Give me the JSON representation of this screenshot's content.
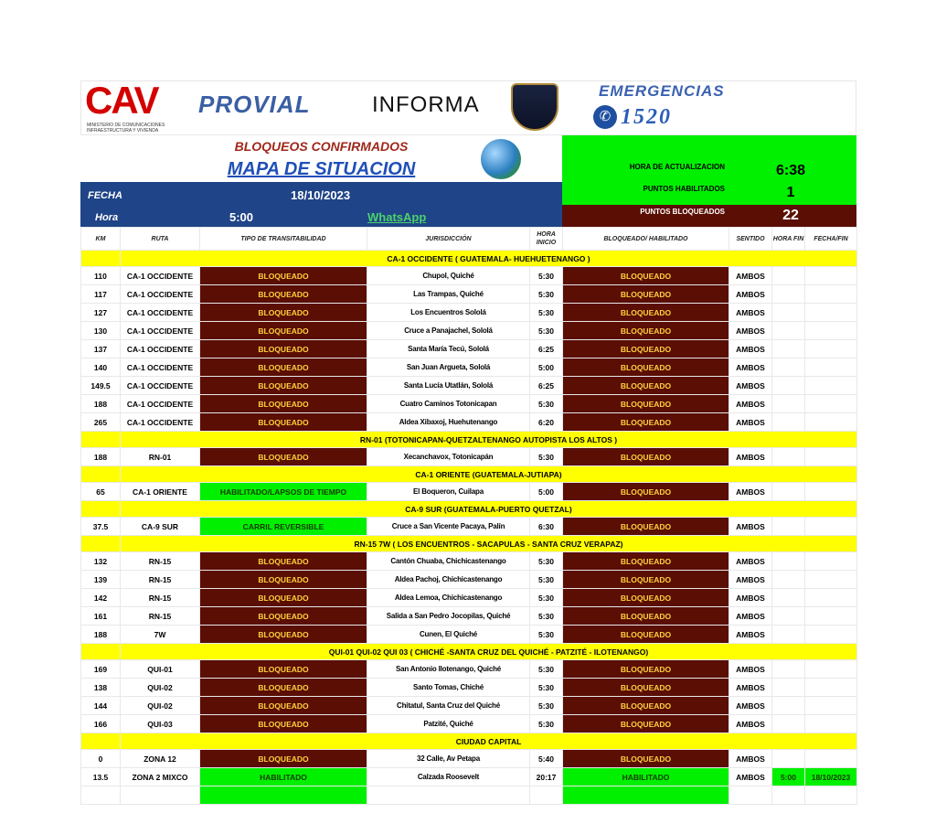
{
  "header": {
    "logo_cav": "CAV",
    "logo_cav_sub": "MINISTERIO DE COMUNICACIONES INFRAESTRUCTURA Y VIVIENDA",
    "provial": "PROVIAL",
    "informa": "INFORMA",
    "emergencias": "EMERGENCIAS",
    "phone": "1520"
  },
  "title": {
    "subtitle": "BLOQUEOS CONFIRMADOS",
    "main": "MAPA DE SITUACION"
  },
  "info": {
    "fecha_label": "FECHA",
    "fecha": "18/10/2023",
    "hora_label": "Hora",
    "hora": "5:00",
    "whatsapp": "WhatsApp",
    "actualizacion_label": "HORA DE ACTUALIZACION",
    "actualizacion": "6:38",
    "habilitados_label": "PUNTOS HABILITADOS",
    "habilitados": "1",
    "bloqueados_label": "PUNTOS BLOQUEADOS",
    "bloqueados": "22"
  },
  "colors": {
    "blocked": "#5a0e04",
    "enabled": "#00f000",
    "section": "#ffff00",
    "blue": "#1f4487"
  },
  "columns": [
    "KM",
    "RUTA",
    "TIPO DE TRANSITABILIDAD",
    "JURISDICCIÓN",
    "HORA INICIO",
    "BLOQUEADO/ HABILITADO",
    "SENTIDO",
    "HORA FIN",
    "FECHA/FIN"
  ],
  "sections": [
    {
      "title": "CA-1 OCCIDENTE  ( GUATEMALA- HUEHUETENANGO )",
      "rows": [
        [
          "110",
          "CA-1 OCCIDENTE",
          "BLOQUEADO",
          "Chupol, Quiché",
          "5:30",
          "BLOQUEADO",
          "AMBOS",
          "",
          ""
        ],
        [
          "117",
          "CA-1 OCCIDENTE",
          "BLOQUEADO",
          "Las Trampas, Quiché",
          "5:30",
          "BLOQUEADO",
          "AMBOS",
          "",
          ""
        ],
        [
          "127",
          "CA-1 OCCIDENTE",
          "BLOQUEADO",
          "Los Encuentros Sololá",
          "5:30",
          "BLOQUEADO",
          "AMBOS",
          "",
          ""
        ],
        [
          "130",
          "CA-1 OCCIDENTE",
          "BLOQUEADO",
          "Cruce a Panajachel, Sololá",
          "5:30",
          "BLOQUEADO",
          "AMBOS",
          "",
          ""
        ],
        [
          "137",
          "CA-1 OCCIDENTE",
          "BLOQUEADO",
          "Santa María Tecú, Sololá",
          "6:25",
          "BLOQUEADO",
          "AMBOS",
          "",
          ""
        ],
        [
          "140",
          "CA-1 OCCIDENTE",
          "BLOQUEADO",
          "San Juan Argueta, Sololá",
          "5:00",
          "BLOQUEADO",
          "AMBOS",
          "",
          ""
        ],
        [
          "149.5",
          "CA-1 OCCIDENTE",
          "BLOQUEADO",
          "Santa Lucía Utatlán, Sololá",
          "6:25",
          "BLOQUEADO",
          "AMBOS",
          "",
          ""
        ],
        [
          "188",
          "CA-1 OCCIDENTE",
          "BLOQUEADO",
          "Cuatro Caminos Totonicapan",
          "5:30",
          "BLOQUEADO",
          "AMBOS",
          "",
          ""
        ],
        [
          "265",
          "CA-1 OCCIDENTE",
          "BLOQUEADO",
          "Aldea Xibaxoj, Huehutenango",
          "6:20",
          "BLOQUEADO",
          "AMBOS",
          "",
          ""
        ]
      ]
    },
    {
      "title": "RN-01 (TOTONICAPAN-QUETZALTENANGO AUTOPISTA LOS ALTOS )",
      "rows": [
        [
          "188",
          "RN-01",
          "BLOQUEADO",
          "Xecanchavox, Totonicapán",
          "5:30",
          "BLOQUEADO",
          "AMBOS",
          "",
          ""
        ]
      ]
    },
    {
      "title": "CA-1 ORIENTE (GUATEMALA-JUTIAPA)",
      "rows": [
        [
          "65",
          "CA-1 ORIENTE",
          "HABILITADO/LAPSOS DE TIEMPO",
          "El Boqueron, Cuilapa",
          "5:00",
          "BLOQUEADO",
          "AMBOS",
          "",
          ""
        ]
      ]
    },
    {
      "title": "CA-9 SUR (GUATEMALA-PUERTO QUETZAL)",
      "rows": [
        [
          "37.5",
          "CA-9 SUR",
          "CARRIL REVERSIBLE",
          "Cruce a San Vicente Pacaya, Palín",
          "6:30",
          "BLOQUEADO",
          "AMBOS",
          "",
          ""
        ]
      ]
    },
    {
      "title": "RN-15 7W  ( LOS ENCUENTROS - SACAPULAS - SANTA CRUZ VERAPAZ)",
      "rows": [
        [
          "132",
          "RN-15",
          "BLOQUEADO",
          "Cantón Chuaba, Chichicastenango",
          "5:30",
          "BLOQUEADO",
          "AMBOS",
          "",
          ""
        ],
        [
          "139",
          "RN-15",
          "BLOQUEADO",
          "Aldea Pachoj, Chichicastenango",
          "5:30",
          "BLOQUEADO",
          "AMBOS",
          "",
          ""
        ],
        [
          "142",
          "RN-15",
          "BLOQUEADO",
          "Aldea Lemoa, Chichicastenango",
          "5:30",
          "BLOQUEADO",
          "AMBOS",
          "",
          ""
        ],
        [
          "161",
          "RN-15",
          "BLOQUEADO",
          "Salida a San Pedro Jocopilas, Quiché",
          "5:30",
          "BLOQUEADO",
          "AMBOS",
          "",
          ""
        ],
        [
          "188",
          "7W",
          "BLOQUEADO",
          "Cunen, El Quiché",
          "5:30",
          "BLOQUEADO",
          "AMBOS",
          "",
          ""
        ]
      ]
    },
    {
      "title": "QUI-01 QUI-02 QUI 03 ( CHICHÉ -SANTA CRUZ DEL QUICHÉ - PATZITÉ - ILOTENANGO)",
      "rows": [
        [
          "169",
          "QUI-01",
          "BLOQUEADO",
          "San Antonio Ilotenango, Quiché",
          "5:30",
          "BLOQUEADO",
          "AMBOS",
          "",
          ""
        ],
        [
          "138",
          "QUI-02",
          "BLOQUEADO",
          "Santo Tomas, Chiché",
          "5:30",
          "BLOQUEADO",
          "AMBOS",
          "",
          ""
        ],
        [
          "144",
          "QUI-02",
          "BLOQUEADO",
          "Chitatul, Santa Cruz del Quiché",
          "5:30",
          "BLOQUEADO",
          "AMBOS",
          "",
          ""
        ],
        [
          "166",
          "QUI-03",
          "BLOQUEADO",
          "Patzité, Quiché",
          "5:30",
          "BLOQUEADO",
          "AMBOS",
          "",
          ""
        ]
      ]
    },
    {
      "title": "CIUDAD CAPITAL",
      "rows": [
        [
          "0",
          "ZONA 12",
          "BLOQUEADO",
          "32 Calle, Av Petapa",
          "5:40",
          "BLOQUEADO",
          "AMBOS",
          "",
          ""
        ],
        [
          "13.5",
          "ZONA 2 MIXCO",
          "HABILITADO",
          "Calzada Roosevelt",
          "20:17",
          "HABILITADO",
          "AMBOS",
          "5:00",
          "18/10/2023"
        ],
        [
          "",
          "",
          "",
          "",
          "",
          "",
          "",
          "",
          ""
        ]
      ]
    }
  ]
}
